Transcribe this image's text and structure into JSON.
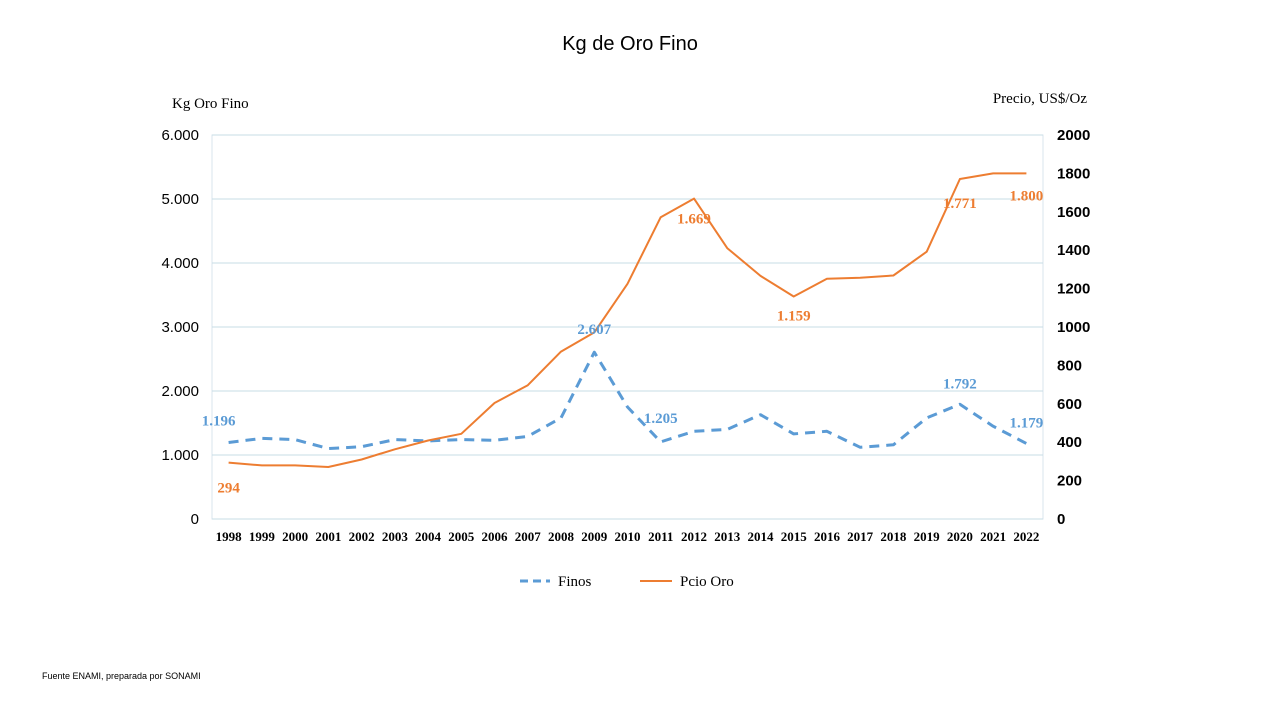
{
  "footer": "Fuente ENAMI, preparada por SONAMI",
  "chart_data": {
    "type": "line",
    "title": "Kg de Oro Fino",
    "ylabel": "Kg Oro Fino",
    "y2label": "Precio,  US$/Oz",
    "ylim": [
      0,
      6000
    ],
    "y2lim": [
      0,
      2000
    ],
    "yticks": [
      "0",
      "1.000",
      "2.000",
      "3.000",
      "4.000",
      "5.000",
      "6.000"
    ],
    "y2ticks": [
      "0",
      "200",
      "400",
      "600",
      "800",
      "1000",
      "1200",
      "1400",
      "1600",
      "1800",
      "2000"
    ],
    "grid": true,
    "legend_position": "bottom",
    "categories": [
      "1998",
      "1999",
      "2000",
      "2001",
      "2002",
      "2003",
      "2004",
      "2005",
      "2006",
      "2007",
      "2008",
      "2009",
      "2010",
      "2011",
      "2012",
      "2013",
      "2014",
      "2015",
      "2016",
      "2017",
      "2018",
      "2019",
      "2020",
      "2021",
      "2022"
    ],
    "series": [
      {
        "name": "Finos",
        "axis": "left",
        "color": "#5b9bd5",
        "style": "dashed",
        "values": [
          1196,
          1260,
          1240,
          1100,
          1130,
          1240,
          1220,
          1240,
          1230,
          1290,
          1580,
          2607,
          1750,
          1205,
          1370,
          1400,
          1630,
          1330,
          1370,
          1120,
          1160,
          1580,
          1792,
          1450,
          1179
        ],
        "labels": [
          {
            "index": 0,
            "text": "1.196"
          },
          {
            "index": 11,
            "text": "2.607"
          },
          {
            "index": 13,
            "text": "1.205"
          },
          {
            "index": 22,
            "text": "1.792"
          },
          {
            "index": 24,
            "text": "1.179"
          }
        ]
      },
      {
        "name": "Pcio Oro",
        "axis": "right",
        "color": "#ed7d31",
        "style": "solid",
        "values": [
          294,
          279,
          279,
          271,
          310,
          363,
          409,
          444,
          604,
          697,
          872,
          972,
          1225,
          1572,
          1669,
          1411,
          1266,
          1159,
          1251,
          1257,
          1268,
          1392,
          1771,
          1800,
          1800
        ],
        "labels": [
          {
            "index": 0,
            "text": "294"
          },
          {
            "index": 14,
            "text": "1.669"
          },
          {
            "index": 17,
            "text": "1.159"
          },
          {
            "index": 22,
            "text": "1.771"
          },
          {
            "index": 24,
            "text": "1.800"
          }
        ]
      }
    ]
  }
}
